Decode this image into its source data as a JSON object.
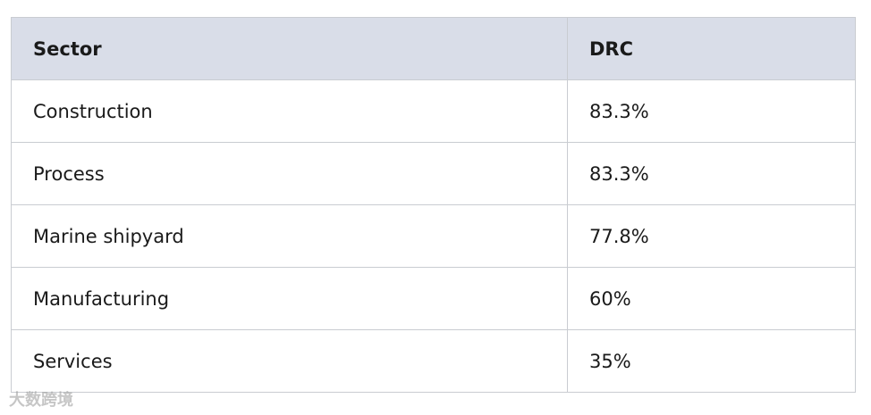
{
  "table": {
    "header": [
      "Sector",
      "DRC"
    ],
    "rows": [
      [
        "Construction",
        "83.3%"
      ],
      [
        "Process",
        "83.3%"
      ],
      [
        "Marine shipyard",
        "77.8%"
      ],
      [
        "Manufacturing",
        "60%"
      ],
      [
        "Services",
        "35%"
      ]
    ]
  },
  "watermark": "大数跨境"
}
